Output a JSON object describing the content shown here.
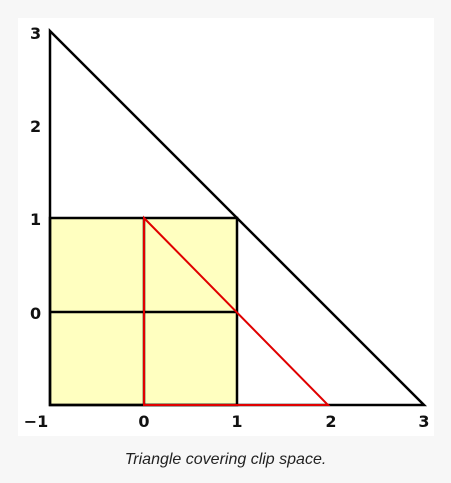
{
  "figure": {
    "caption": "Triangle covering clip space."
  },
  "diagram": {
    "x_ticks": [
      "−1",
      "0",
      "1",
      "2",
      "3"
    ],
    "y_ticks": [
      "3",
      "2",
      "1",
      "0"
    ],
    "colors": {
      "background": "#ffffff",
      "page": "#f7f7f7",
      "clip_fill": "#ffffc0",
      "line": "#000000",
      "highlight": "#e00000"
    }
  }
}
